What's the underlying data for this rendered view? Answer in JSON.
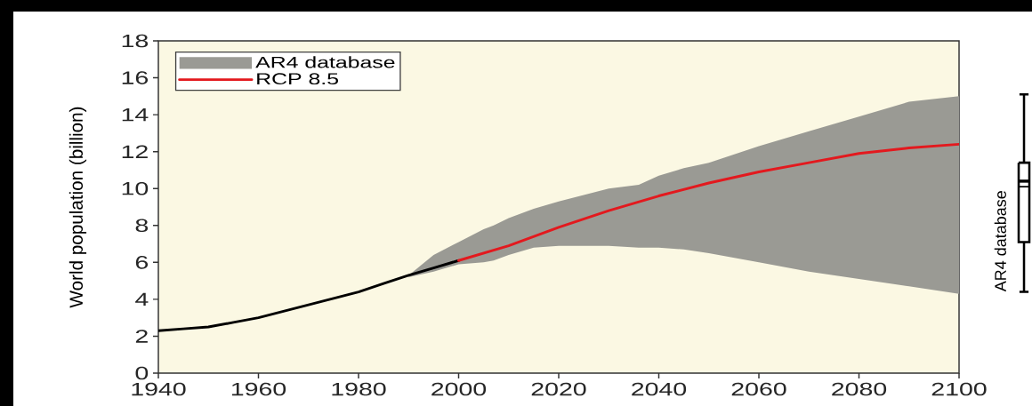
{
  "chart_data": [
    {
      "type": "line",
      "ylabel": "World population (billion)",
      "xlim": [
        1940,
        2100
      ],
      "xticks": [
        1940,
        1960,
        1980,
        2000,
        2020,
        2040,
        2060,
        2080,
        2100
      ],
      "ylim": [
        0,
        18
      ],
      "yticks": [
        0,
        2,
        4,
        6,
        8,
        10,
        12,
        14,
        16,
        18
      ],
      "legend": "top left",
      "series": [
        {
          "name": "AR4 database",
          "type": "area",
          "color": "#9a9a94",
          "x": [
            1990,
            1995,
            2000,
            2005,
            2007,
            2010,
            2015,
            2020,
            2030,
            2036,
            2040,
            2045,
            2050,
            2060,
            2070,
            2080,
            2090,
            2100
          ],
          "values": [
            null,
            null,
            null,
            null,
            null,
            null,
            null,
            null,
            null,
            null,
            null,
            null,
            null,
            null,
            null,
            null,
            null,
            null
          ],
          "lower": [
            5.2,
            5.5,
            5.9,
            6.0,
            6.1,
            6.4,
            6.8,
            6.9,
            6.9,
            6.8,
            6.8,
            6.7,
            6.5,
            6.0,
            5.5,
            5.1,
            4.7,
            4.3
          ],
          "upper": [
            5.3,
            6.4,
            7.1,
            7.8,
            8.0,
            8.4,
            8.9,
            9.3,
            10.0,
            10.2,
            10.7,
            11.1,
            11.4,
            12.3,
            13.1,
            13.9,
            14.7,
            15.0
          ]
        },
        {
          "type": "line",
          "color": "#000000",
          "x": [
            1940,
            1945,
            1950,
            1955,
            1960,
            1965,
            1970,
            1975,
            1980,
            1985,
            1990,
            1995,
            2000
          ],
          "values": [
            2.3,
            2.4,
            2.5,
            2.75,
            3.0,
            3.35,
            3.7,
            4.05,
            4.4,
            4.85,
            5.3,
            5.7,
            6.1
          ]
        },
        {
          "name": "RCP 8.5",
          "type": "line",
          "color": "#e3191e",
          "x": [
            2000,
            2010,
            2020,
            2030,
            2040,
            2050,
            2060,
            2070,
            2080,
            2090,
            2100
          ],
          "values": [
            6.1,
            6.9,
            7.9,
            8.8,
            9.6,
            10.3,
            10.9,
            11.4,
            11.9,
            12.2,
            12.4
          ]
        }
      ]
    },
    {
      "type": "box",
      "categories": [
        "AR4 database"
      ],
      "color": "#000000",
      "ylim": [
        0,
        18
      ],
      "tick_labels": "x",
      "boxes": [
        {
          "low": 4.4,
          "q1": 7.1,
          "median": 10.4,
          "q3": 11.4,
          "high": 15.1,
          "mean": 10.1
        }
      ]
    }
  ]
}
